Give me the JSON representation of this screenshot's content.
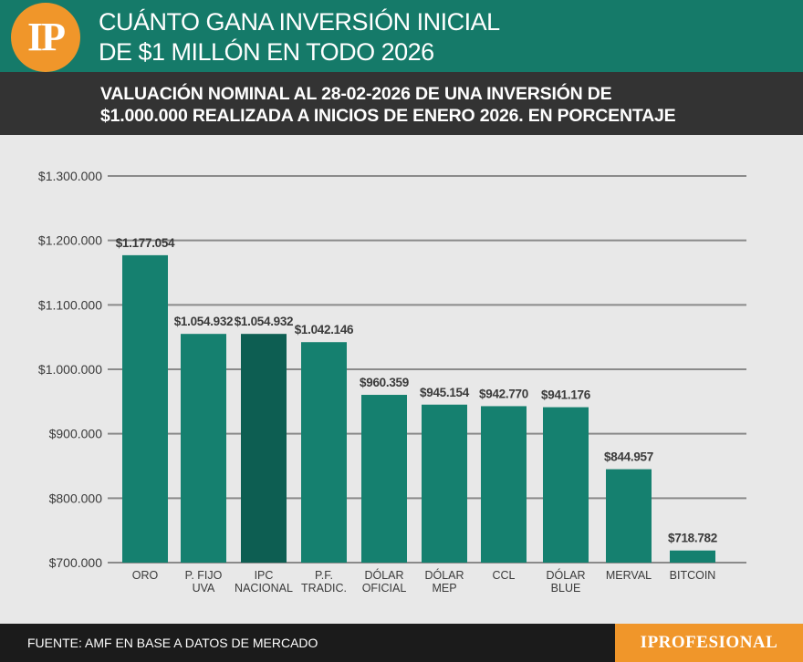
{
  "header": {
    "logo_text": "IP",
    "title_line1": "CUÁNTO GANA INVERSIÓN INICIAL",
    "title_line2": "DE $1 MILLÓN EN TODO 2026",
    "subtitle_line1": "VALUACIÓN NOMINAL AL 28-02-2026 DE UNA INVERSIÓN DE",
    "subtitle_line2": "$1.000.000 REALIZADA A INICIOS DE ENERO 2026. EN PORCENTAJE"
  },
  "colors": {
    "header_bg": "#157a69",
    "bar": "#15806f",
    "bar_highlight": "#0d5e52",
    "accent": "#f0962a"
  },
  "chart_data": {
    "type": "bar",
    "title": "VALUACIÓN NOMINAL AL 28-02-2026 DE UNA INVERSIÓN DE $1.000.000 REALIZADA A INICIOS DE ENERO 2026. EN PORCENTAJE",
    "categories": [
      [
        "ORO"
      ],
      [
        "P. FIJO",
        "UVA"
      ],
      [
        "IPC",
        "NACIONAL"
      ],
      [
        "P.F.",
        "TRADIC."
      ],
      [
        "DÓLAR",
        "OFICIAL"
      ],
      [
        "DÓLAR",
        "MEP"
      ],
      [
        "CCL"
      ],
      [
        "DÓLAR",
        "BLUE"
      ],
      [
        "MERVAL"
      ],
      [
        "BITCOIN"
      ]
    ],
    "values": [
      1177054,
      1054932,
      1054932,
      1042146,
      960359,
      945154,
      942770,
      941176,
      844957,
      718782
    ],
    "value_labels": [
      "$1.177.054",
      "$1.054.932",
      "$1.054.932",
      "$1.042.146",
      "$960.359",
      "$945.154",
      "$942.770",
      "$941.176",
      "$844.957",
      "$718.782"
    ],
    "highlight_index": 2,
    "y_ticks": [
      700000,
      800000,
      900000,
      1000000,
      1100000,
      1200000,
      1300000
    ],
    "y_tick_labels": [
      "$700.000",
      "$800.000",
      "$900.000",
      "$1.000.000",
      "$1.100.000",
      "$1.200.000",
      "$1.300.000"
    ],
    "ylim": [
      700000,
      1300000
    ],
    "xlabel": "",
    "ylabel": "",
    "grid": true
  },
  "footer": {
    "source": "FUENTE: AMF EN BASE A DATOS DE MERCADO",
    "brand": "IPROFESIONAL"
  }
}
